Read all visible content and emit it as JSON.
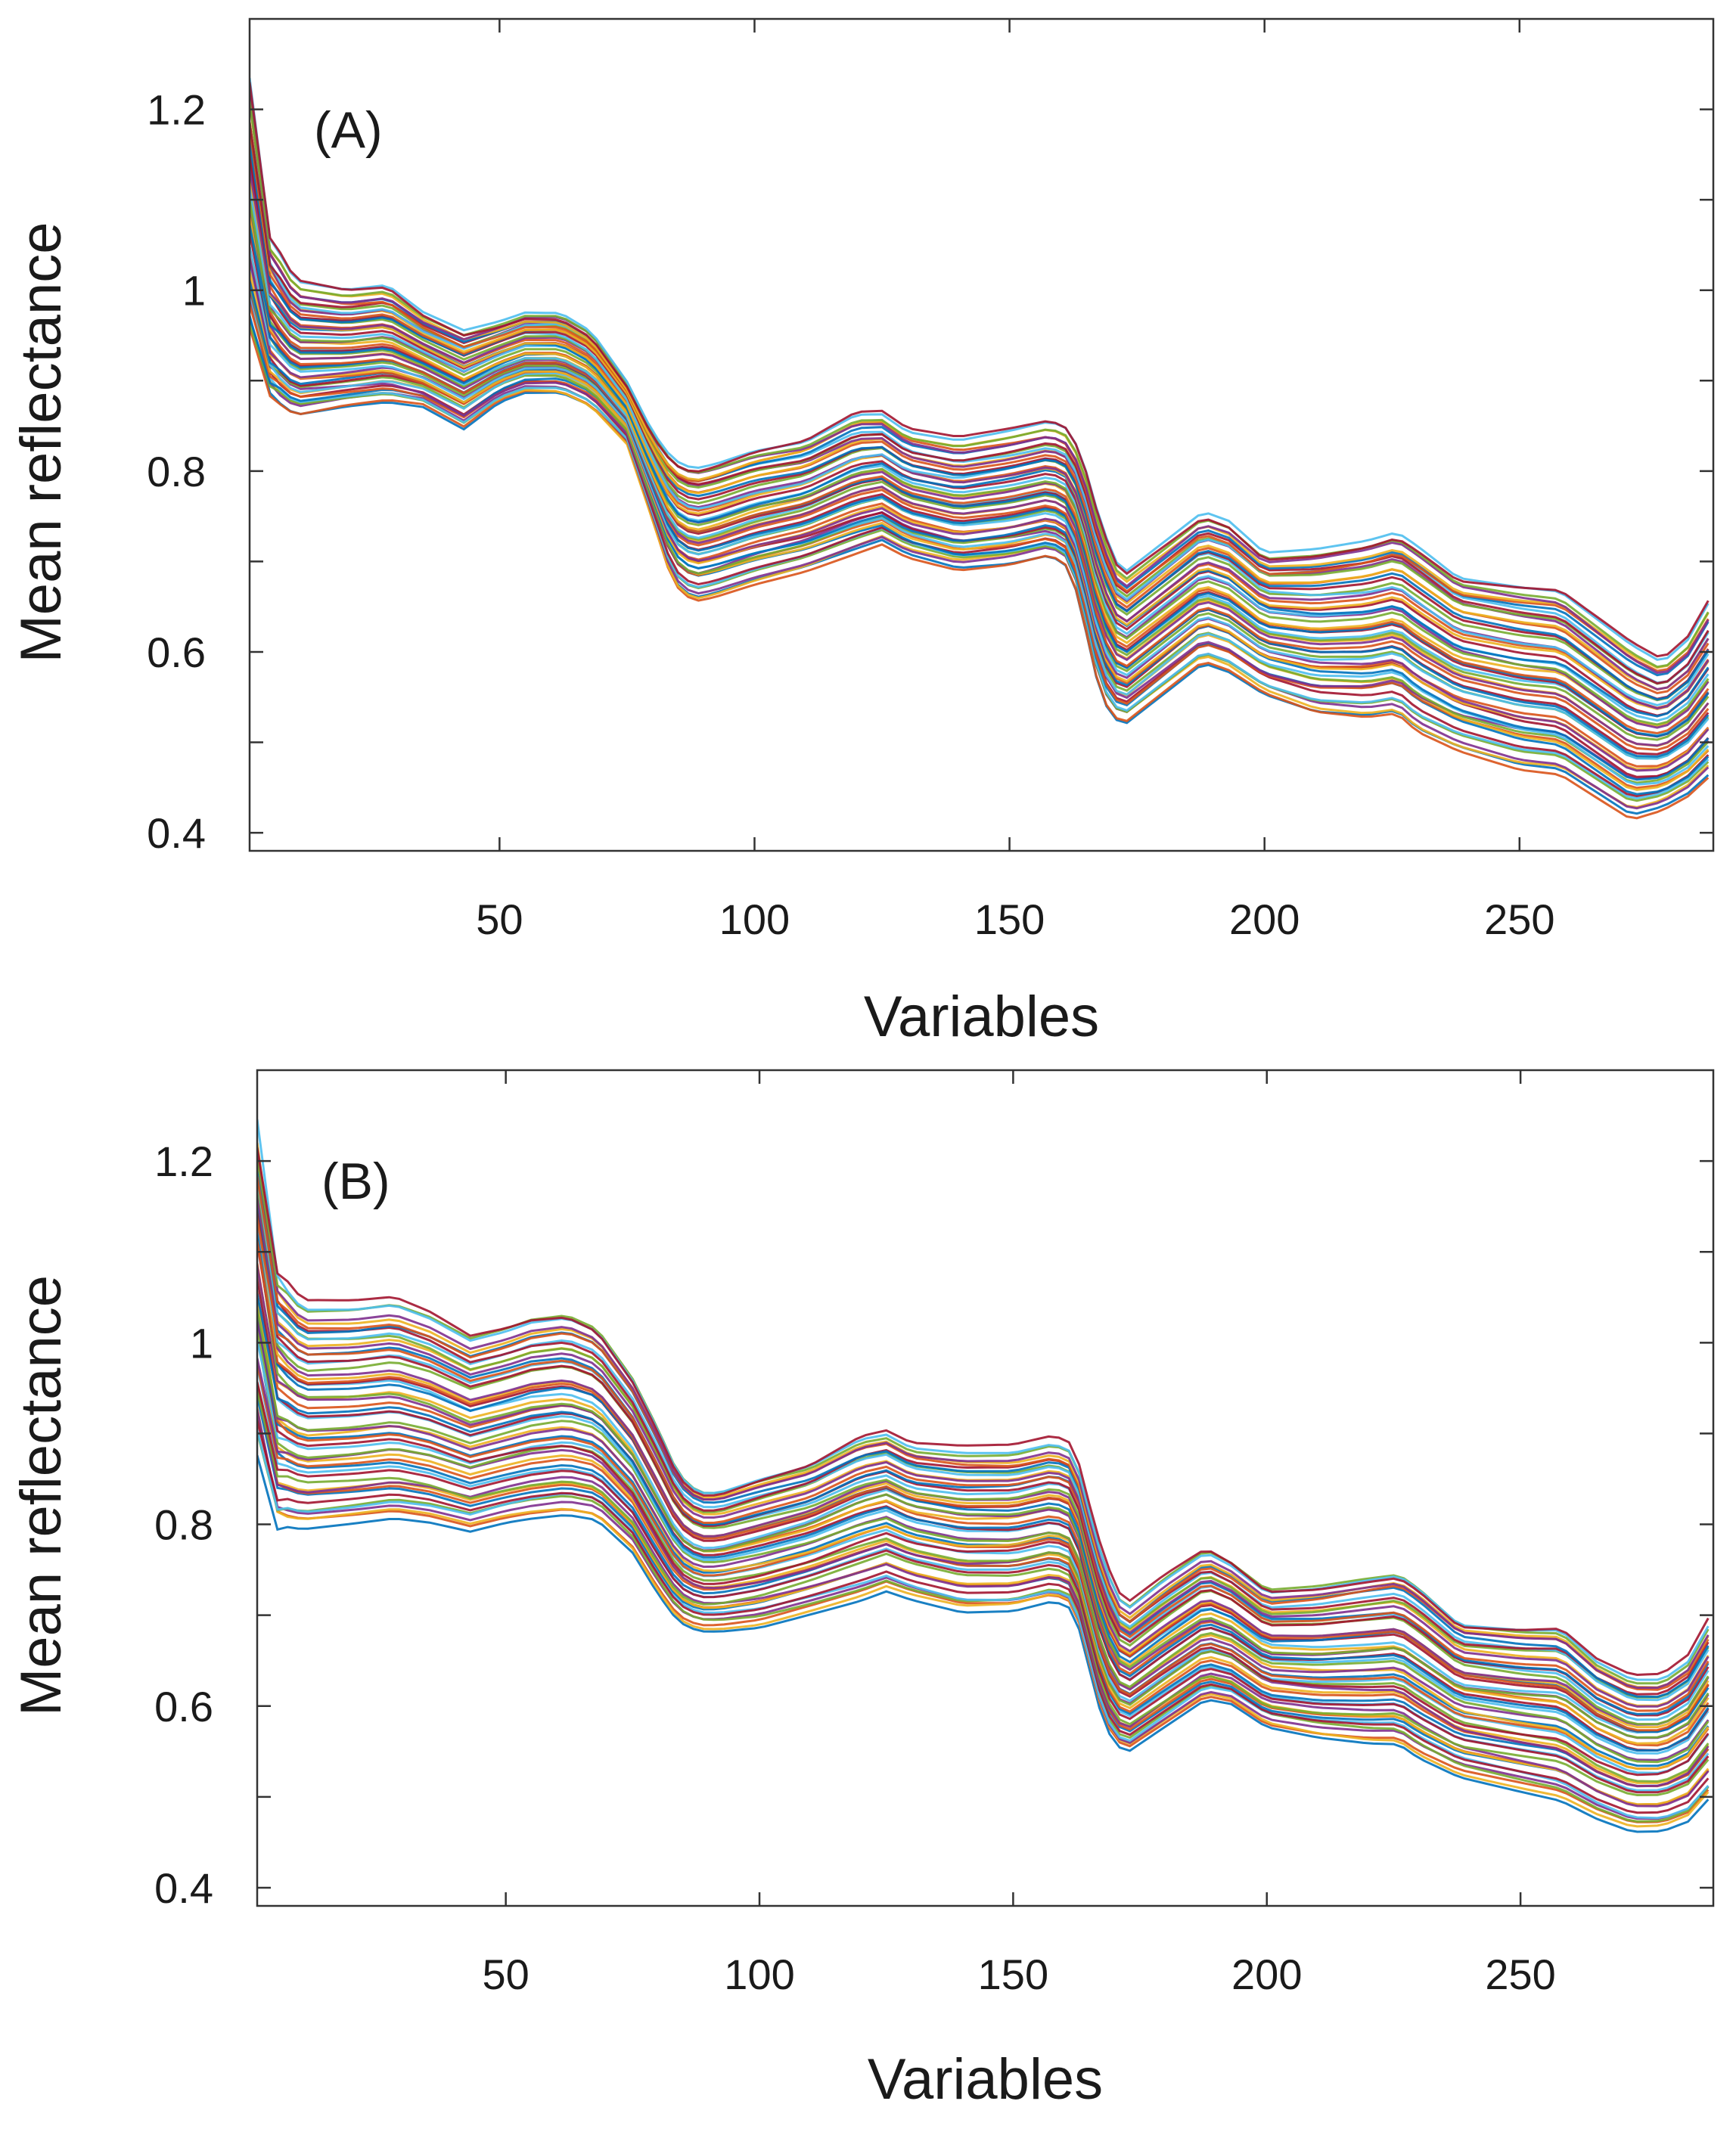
{
  "palette": [
    "#0072BD",
    "#D95319",
    "#EDB120",
    "#7E2F8E",
    "#77AC30",
    "#4DBEEE",
    "#A2142F"
  ],
  "chart_data": [
    {
      "panel": "(A)",
      "type": "line",
      "xlabel": "Variables",
      "ylabel": "Mean reflectance",
      "xlim": [
        1,
        288
      ],
      "ylim": [
        0.38,
        1.3
      ],
      "xticks": [
        50,
        100,
        150,
        200,
        250
      ],
      "yticks": [
        0.4,
        0.5,
        0.6,
        0.7,
        0.8,
        0.9,
        1.0,
        1.1,
        1.2
      ],
      "ytick_labels": [
        "0.4",
        "",
        "0.6",
        "",
        "0.8",
        "",
        "1",
        "",
        "1.2"
      ],
      "grid": false,
      "legend": "none",
      "series_count": 56,
      "x": [
        1,
        5,
        10,
        20,
        28,
        35,
        43,
        50,
        55,
        62,
        68,
        75,
        80,
        84,
        88,
        92,
        100,
        110,
        120,
        125,
        130,
        140,
        150,
        158,
        162,
        165,
        168,
        172,
        180,
        188,
        193,
        200,
        210,
        220,
        226,
        230,
        238,
        250,
        258,
        265,
        272,
        278,
        283,
        288
      ],
      "y_upper": [
        1.25,
        1.06,
        1.01,
        1.0,
        1.005,
        0.975,
        0.955,
        0.965,
        0.975,
        0.975,
        0.955,
        0.9,
        0.845,
        0.815,
        0.805,
        0.81,
        0.825,
        0.835,
        0.865,
        0.865,
        0.845,
        0.835,
        0.845,
        0.855,
        0.845,
        0.8,
        0.74,
        0.685,
        0.72,
        0.755,
        0.745,
        0.71,
        0.715,
        0.725,
        0.735,
        0.72,
        0.685,
        0.675,
        0.67,
        0.64,
        0.61,
        0.59,
        0.615,
        0.665
      ],
      "y_lower": [
        0.95,
        0.88,
        0.86,
        0.87,
        0.875,
        0.87,
        0.845,
        0.875,
        0.885,
        0.885,
        0.87,
        0.83,
        0.745,
        0.675,
        0.655,
        0.66,
        0.675,
        0.69,
        0.71,
        0.72,
        0.705,
        0.69,
        0.695,
        0.705,
        0.69,
        0.62,
        0.545,
        0.515,
        0.55,
        0.585,
        0.575,
        0.55,
        0.53,
        0.525,
        0.53,
        0.51,
        0.49,
        0.47,
        0.465,
        0.44,
        0.415,
        0.425,
        0.44,
        0.465
      ]
    },
    {
      "panel": "(B)",
      "type": "line",
      "xlabel": "Variables",
      "ylabel": "Mean reflectance",
      "xlim": [
        1,
        288
      ],
      "ylim": [
        0.38,
        1.3
      ],
      "xticks": [
        50,
        100,
        150,
        200,
        250
      ],
      "yticks": [
        0.4,
        0.5,
        0.6,
        0.7,
        0.8,
        0.9,
        1.0,
        1.1,
        1.2
      ],
      "ytick_labels": [
        "0.4",
        "",
        "0.6",
        "",
        "0.8",
        "",
        "1",
        "",
        "1.2"
      ],
      "grid": false,
      "legend": "none",
      "series_count": 56,
      "x": [
        1,
        5,
        10,
        20,
        28,
        35,
        43,
        50,
        55,
        62,
        68,
        75,
        80,
        84,
        88,
        92,
        100,
        110,
        120,
        125,
        130,
        140,
        150,
        158,
        162,
        165,
        168,
        172,
        180,
        188,
        193,
        200,
        210,
        220,
        226,
        230,
        238,
        250,
        258,
        265,
        272,
        278,
        283,
        288
      ],
      "y_upper": [
        1.24,
        1.08,
        1.045,
        1.045,
        1.05,
        1.035,
        1.01,
        1.02,
        1.03,
        1.035,
        1.02,
        0.965,
        0.91,
        0.86,
        0.84,
        0.84,
        0.855,
        0.87,
        0.9,
        0.905,
        0.89,
        0.885,
        0.885,
        0.895,
        0.885,
        0.82,
        0.76,
        0.71,
        0.745,
        0.775,
        0.76,
        0.73,
        0.735,
        0.745,
        0.75,
        0.735,
        0.695,
        0.69,
        0.69,
        0.655,
        0.635,
        0.635,
        0.655,
        0.705
      ],
      "y_lower": [
        0.9,
        0.8,
        0.795,
        0.8,
        0.805,
        0.8,
        0.79,
        0.8,
        0.805,
        0.81,
        0.805,
        0.77,
        0.725,
        0.695,
        0.685,
        0.685,
        0.69,
        0.705,
        0.72,
        0.73,
        0.72,
        0.705,
        0.705,
        0.715,
        0.705,
        0.64,
        0.575,
        0.545,
        0.575,
        0.605,
        0.6,
        0.575,
        0.565,
        0.56,
        0.56,
        0.545,
        0.525,
        0.51,
        0.5,
        0.48,
        0.465,
        0.465,
        0.475,
        0.505
      ]
    }
  ]
}
